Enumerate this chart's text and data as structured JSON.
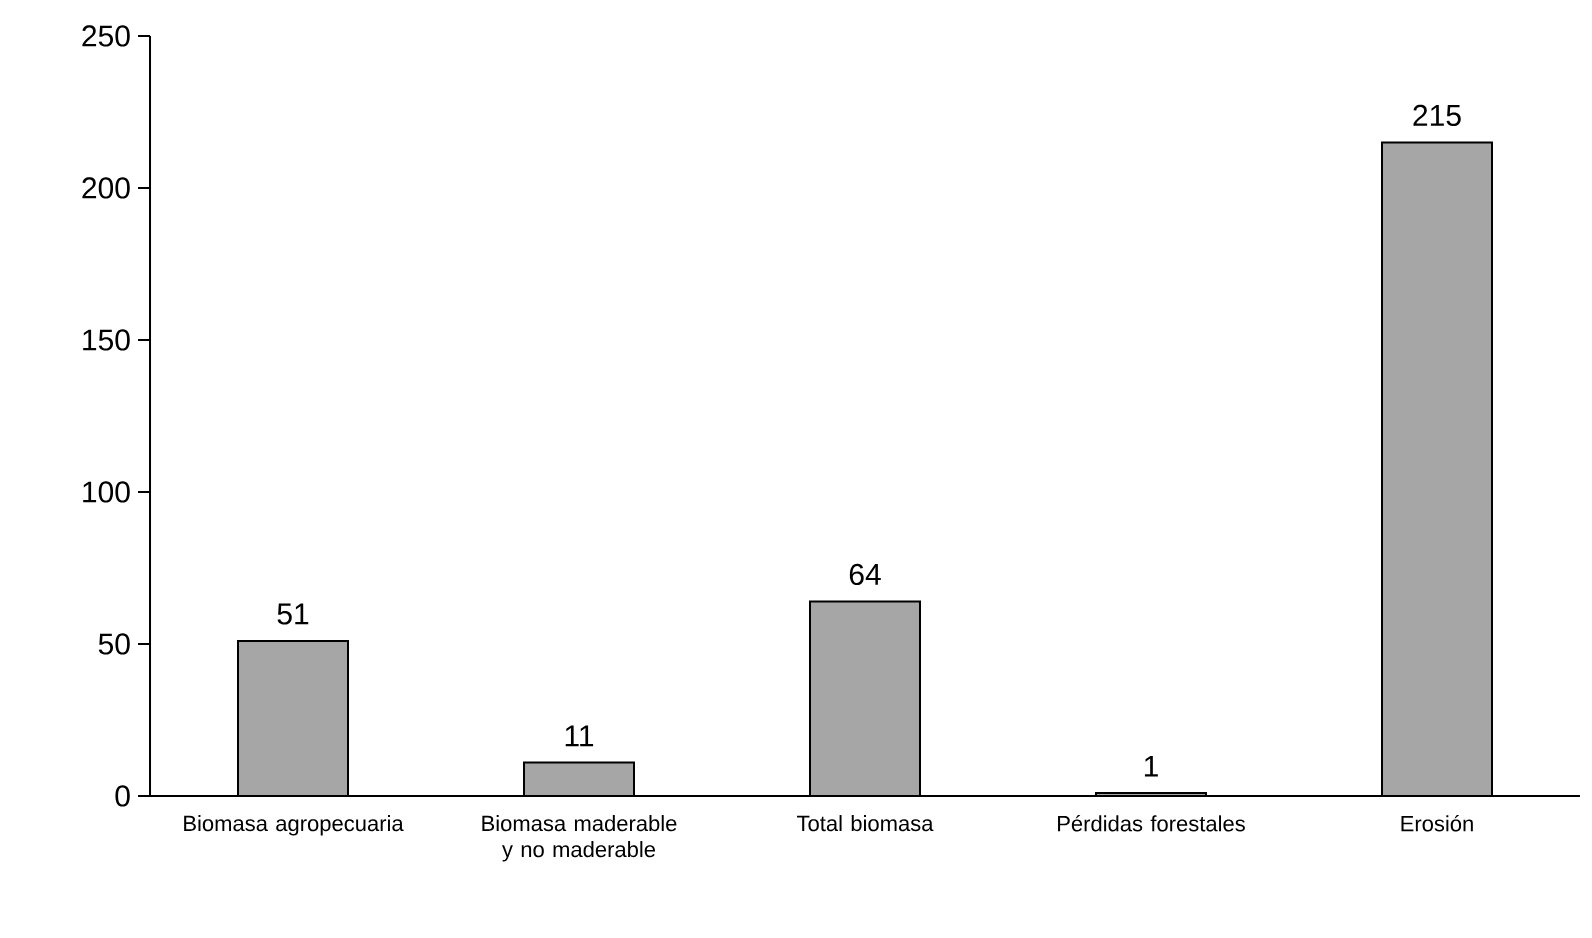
{
  "chart_data": {
    "type": "bar",
    "categories": [
      "Biomasa agropecuaria",
      "Biomasa maderable y no maderable",
      "Total biomasa",
      "Pérdidas forestales",
      "Erosión"
    ],
    "values": [
      51,
      11,
      64,
      1,
      215
    ],
    "color": "#a6a6a6",
    "ylim": [
      0,
      250
    ],
    "yticks": [
      0,
      50,
      100,
      150,
      200,
      250
    ],
    "data_labels": true,
    "grid": false
  }
}
